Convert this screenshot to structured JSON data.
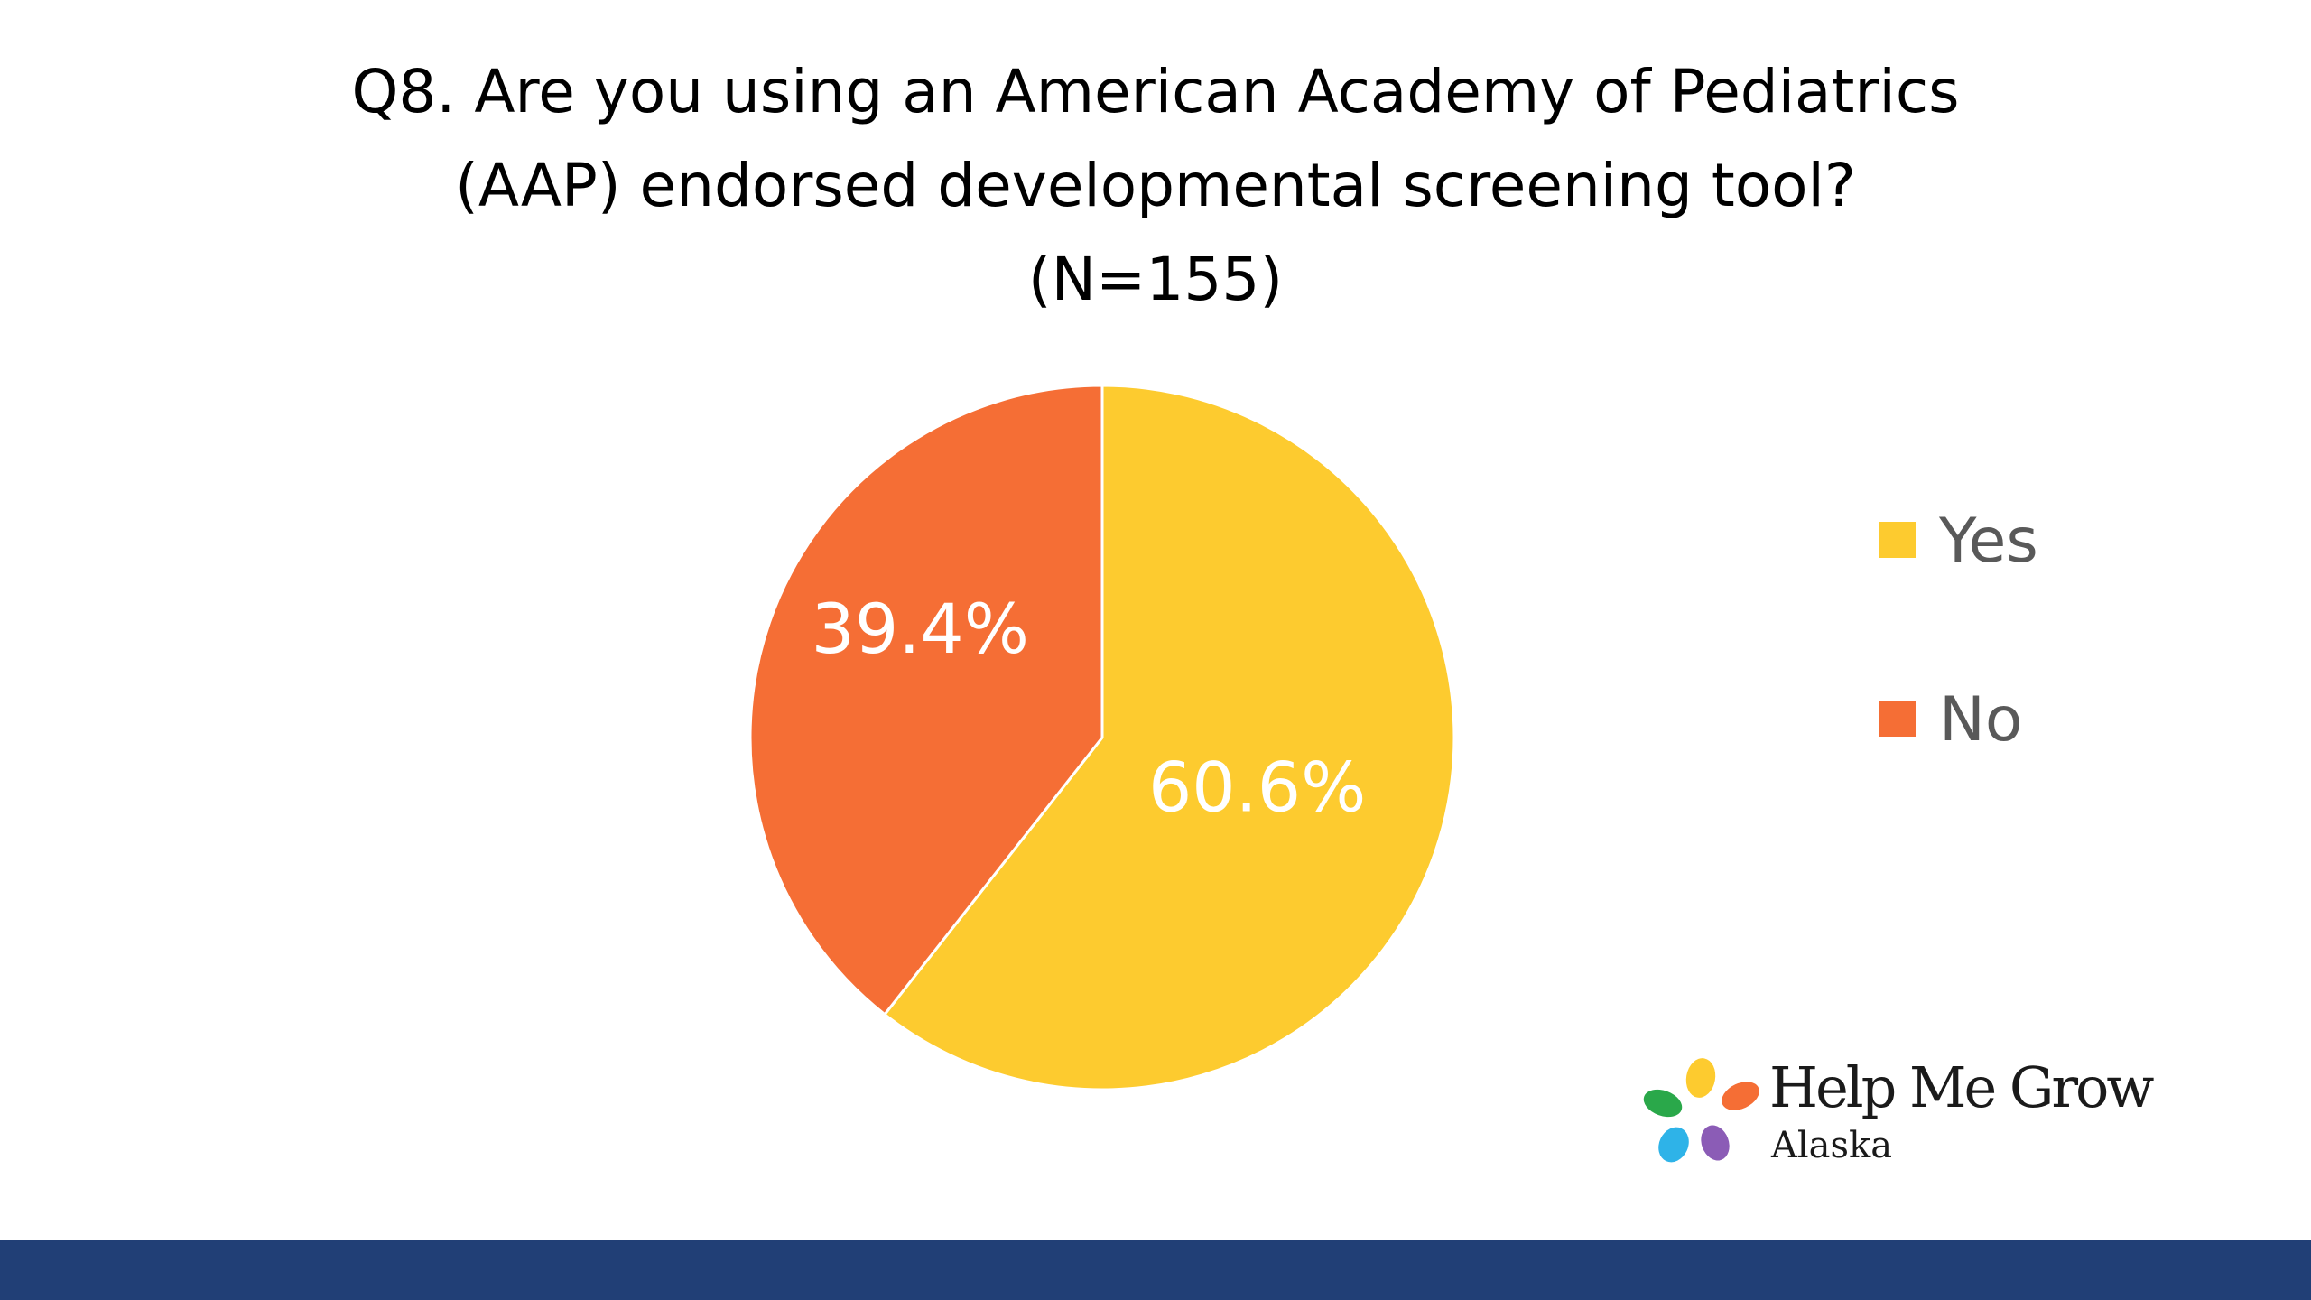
{
  "chart_data": {
    "type": "pie",
    "title": [
      "Q8. Are you using an American Academy of Pediatrics",
      "(AAP) endorsed developmental screening tool?",
      "(N=155)"
    ],
    "slices": [
      {
        "label": "Yes",
        "value": 60.6,
        "display": "60.6%",
        "color": "#fdcb2f"
      },
      {
        "label": "No",
        "value": 39.4,
        "display": "39.4%",
        "color": "#f56e35"
      }
    ],
    "legend": {
      "placement": "right"
    }
  },
  "logo": {
    "name": "Help Me Grow",
    "sub": "Alaska",
    "petal_colors": [
      "#fdcb2f",
      "#f56e35",
      "#2aa84a",
      "#2eb3e8",
      "#8b5cb6"
    ]
  },
  "footer": {
    "color": "#213f76"
  }
}
